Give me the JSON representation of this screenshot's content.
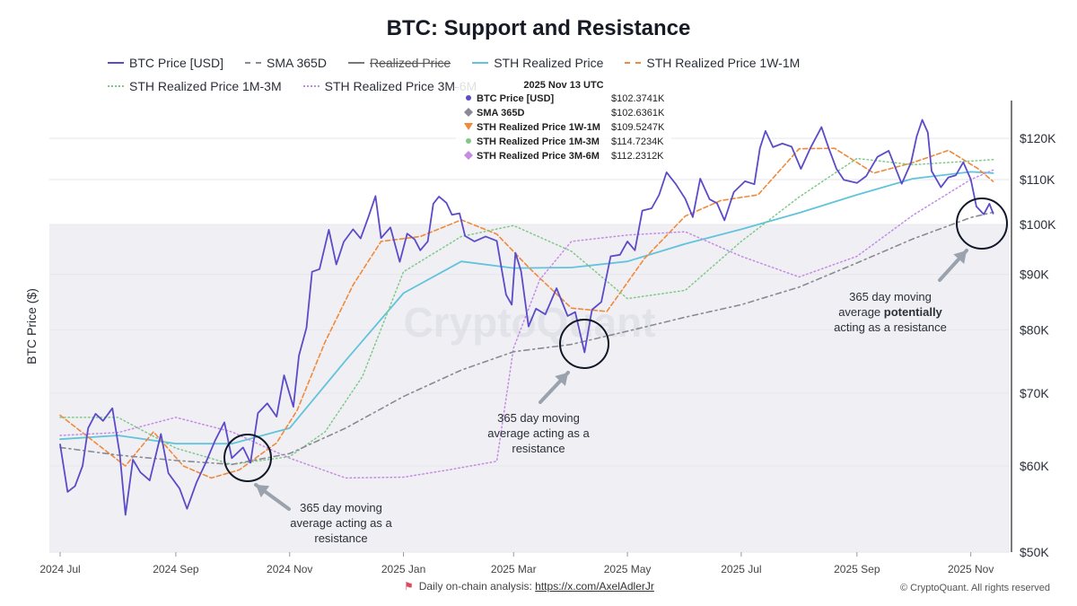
{
  "page": {
    "title": "BTC: Support and Resistance"
  },
  "legend": [
    {
      "label": "BTC Price [USD]",
      "color": "#5b4bc8",
      "dash": "solid"
    },
    {
      "label": "SMA 365D",
      "color": "#8a8a96",
      "dash": "dash"
    },
    {
      "label": "Realized Price",
      "color": "#777",
      "dash": "solid",
      "strike": true
    },
    {
      "label": "STH Realized Price",
      "color": "#62c3dc",
      "dash": "solid"
    },
    {
      "label": "STH Realized Price 1W-1M",
      "color": "#ef8a3c",
      "dash": "dash"
    },
    {
      "label": "STH Realized Price 1M-3M",
      "color": "#7ec98a",
      "dash": "dot"
    },
    {
      "label": "STH Realized Price 3M-6M",
      "color": "#c48ae6",
      "dash": "dot"
    }
  ],
  "tooltip": {
    "date": "2025 Nov 13 UTC",
    "rows": [
      {
        "marker": "circle",
        "color": "#5b4bc8",
        "label": "BTC Price [USD]",
        "value": "$102.3741K"
      },
      {
        "marker": "diamond",
        "color": "#8a8a96",
        "label": "SMA 365D",
        "value": "$102.6361K"
      },
      {
        "marker": "triangle",
        "color": "#ef8a3c",
        "label": "STH Realized Price 1W-1M",
        "value": "$109.5247K"
      },
      {
        "marker": "circle",
        "color": "#7ec98a",
        "label": "STH Realized Price 1M-3M",
        "value": "$114.7234K"
      },
      {
        "marker": "diamond",
        "color": "#c48ae6",
        "label": "STH Realized Price 3M-6M",
        "value": "$112.2312K"
      }
    ]
  },
  "annotations": [
    {
      "lines": [
        "365 day moving",
        "average acting as a",
        "resistance"
      ]
    },
    {
      "lines": [
        "365 day moving",
        "average acting as a",
        "resistance"
      ]
    },
    {
      "lines": [
        "365 day moving",
        "average potentially",
        "acting as a resistance"
      ],
      "bold_word": "potentially"
    }
  ],
  "watermark": "CryptoQuant",
  "footer": {
    "prefix": "Daily on-chain analysis: ",
    "link": "https://x.com/AxelAdlerJr",
    "copyright": "© CryptoQuant. All rights reserved"
  },
  "chart_data": {
    "type": "line",
    "title": "BTC: Support and Resistance",
    "ylabel": "BTC Price ($)",
    "y_scale": "log",
    "ylim": [
      50000,
      130000
    ],
    "y_ticks": [
      {
        "value": 120000,
        "label": "$120K"
      },
      {
        "value": 110000,
        "label": "$110K"
      },
      {
        "value": 100000,
        "label": "$100K"
      },
      {
        "value": 90000,
        "label": "$90K"
      },
      {
        "value": 80000,
        "label": "$80K"
      },
      {
        "value": 70000,
        "label": "$70K"
      },
      {
        "value": 60000,
        "label": "$60K"
      },
      {
        "value": 50000,
        "label": "$50K"
      }
    ],
    "x_ticks": [
      {
        "date": "2024-07-01",
        "label": "2024 Jul"
      },
      {
        "date": "2024-09-01",
        "label": "2024 Sep"
      },
      {
        "date": "2024-11-01",
        "label": "2024 Nov"
      },
      {
        "date": "2025-01-01",
        "label": "2025 Jan"
      },
      {
        "date": "2025-03-01",
        "label": "2025 Mar"
      },
      {
        "date": "2025-05-01",
        "label": "2025 May"
      },
      {
        "date": "2025-07-01",
        "label": "2025 Jul"
      },
      {
        "date": "2025-09-01",
        "label": "2025 Sep"
      },
      {
        "date": "2025-11-01",
        "label": "2025 Nov"
      }
    ],
    "xlim": [
      "2024-07-01",
      "2025-11-18"
    ],
    "shaded_band_below": 100000,
    "series": [
      {
        "name": "BTC Price [USD]",
        "color": "#5b4bc8",
        "width": 1.8,
        "dash": "",
        "points": [
          [
            "2024-07-01",
            62800
          ],
          [
            "2024-07-05",
            56800
          ],
          [
            "2024-07-09",
            57500
          ],
          [
            "2024-07-13",
            60000
          ],
          [
            "2024-07-16",
            65000
          ],
          [
            "2024-07-20",
            67000
          ],
          [
            "2024-07-24",
            66000
          ],
          [
            "2024-07-29",
            67800
          ],
          [
            "2024-08-02",
            61500
          ],
          [
            "2024-08-05",
            54100
          ],
          [
            "2024-08-09",
            60800
          ],
          [
            "2024-08-13",
            59200
          ],
          [
            "2024-08-18",
            58200
          ],
          [
            "2024-08-24",
            64200
          ],
          [
            "2024-08-28",
            59100
          ],
          [
            "2024-09-03",
            57200
          ],
          [
            "2024-09-07",
            54800
          ],
          [
            "2024-09-12",
            57900
          ],
          [
            "2024-09-17",
            60400
          ],
          [
            "2024-09-22",
            63300
          ],
          [
            "2024-09-27",
            65800
          ],
          [
            "2024-10-01",
            61000
          ],
          [
            "2024-10-07",
            62400
          ],
          [
            "2024-10-11",
            60400
          ],
          [
            "2024-10-15",
            67100
          ],
          [
            "2024-10-20",
            68500
          ],
          [
            "2024-10-25",
            66600
          ],
          [
            "2024-10-29",
            72700
          ],
          [
            "2024-11-03",
            68000
          ],
          [
            "2024-11-06",
            75800
          ],
          [
            "2024-11-10",
            80400
          ],
          [
            "2024-11-13",
            90500
          ],
          [
            "2024-11-17",
            91000
          ],
          [
            "2024-11-22",
            98900
          ],
          [
            "2024-11-26",
            91900
          ],
          [
            "2024-11-30",
            96400
          ],
          [
            "2024-12-05",
            99000
          ],
          [
            "2024-12-09",
            97100
          ],
          [
            "2024-12-13",
            101400
          ],
          [
            "2024-12-17",
            106200
          ],
          [
            "2024-12-20",
            97200
          ],
          [
            "2024-12-25",
            99400
          ],
          [
            "2024-12-30",
            92400
          ],
          [
            "2025-01-03",
            98100
          ],
          [
            "2025-01-07",
            96900
          ],
          [
            "2025-01-10",
            94700
          ],
          [
            "2025-01-14",
            96500
          ],
          [
            "2025-01-17",
            104500
          ],
          [
            "2025-01-20",
            106100
          ],
          [
            "2025-01-24",
            104700
          ],
          [
            "2025-01-27",
            102100
          ],
          [
            "2025-01-31",
            102400
          ],
          [
            "2025-02-03",
            97600
          ],
          [
            "2025-02-08",
            96500
          ],
          [
            "2025-02-14",
            97500
          ],
          [
            "2025-02-20",
            96600
          ],
          [
            "2025-02-25",
            86200
          ],
          [
            "2025-02-28",
            84400
          ],
          [
            "2025-03-02",
            94200
          ],
          [
            "2025-03-05",
            90600
          ],
          [
            "2025-03-09",
            80600
          ],
          [
            "2025-03-13",
            83700
          ],
          [
            "2025-03-18",
            82700
          ],
          [
            "2025-03-24",
            87400
          ],
          [
            "2025-03-30",
            82400
          ],
          [
            "2025-04-03",
            83100
          ],
          [
            "2025-04-08",
            76300
          ],
          [
            "2025-04-12",
            83500
          ],
          [
            "2025-04-17",
            84900
          ],
          [
            "2025-04-22",
            93500
          ],
          [
            "2025-04-27",
            93800
          ],
          [
            "2025-05-01",
            96500
          ],
          [
            "2025-05-05",
            94700
          ],
          [
            "2025-05-09",
            103000
          ],
          [
            "2025-05-14",
            103500
          ],
          [
            "2025-05-18",
            106500
          ],
          [
            "2025-05-22",
            111700
          ],
          [
            "2025-05-27",
            108900
          ],
          [
            "2025-06-01",
            105600
          ],
          [
            "2025-06-05",
            101600
          ],
          [
            "2025-06-09",
            110200
          ],
          [
            "2025-06-14",
            105500
          ],
          [
            "2025-06-18",
            104600
          ],
          [
            "2025-06-22",
            100900
          ],
          [
            "2025-06-27",
            107100
          ],
          [
            "2025-07-03",
            109600
          ],
          [
            "2025-07-08",
            108900
          ],
          [
            "2025-07-11",
            117500
          ],
          [
            "2025-07-14",
            121900
          ],
          [
            "2025-07-18",
            117800
          ],
          [
            "2025-07-23",
            118700
          ],
          [
            "2025-07-28",
            117900
          ],
          [
            "2025-08-02",
            112500
          ],
          [
            "2025-08-07",
            117500
          ],
          [
            "2025-08-13",
            122900
          ],
          [
            "2025-08-17",
            117400
          ],
          [
            "2025-08-21",
            112500
          ],
          [
            "2025-08-25",
            109900
          ],
          [
            "2025-09-01",
            109200
          ],
          [
            "2025-09-06",
            110800
          ],
          [
            "2025-09-12",
            115400
          ],
          [
            "2025-09-18",
            116900
          ],
          [
            "2025-09-25",
            109000
          ],
          [
            "2025-09-30",
            114000
          ],
          [
            "2025-10-03",
            120500
          ],
          [
            "2025-10-06",
            124800
          ],
          [
            "2025-10-09",
            121500
          ],
          [
            "2025-10-11",
            112000
          ],
          [
            "2025-10-16",
            108200
          ],
          [
            "2025-10-20",
            110500
          ],
          [
            "2025-10-24",
            111000
          ],
          [
            "2025-10-28",
            114100
          ],
          [
            "2025-11-01",
            110000
          ],
          [
            "2025-11-04",
            103900
          ],
          [
            "2025-11-08",
            102200
          ],
          [
            "2025-11-11",
            104500
          ],
          [
            "2025-11-13",
            102374
          ]
        ]
      },
      {
        "name": "SMA 365D",
        "color": "#8a8a96",
        "width": 1.6,
        "dash": "6 4 2 4",
        "points": [
          [
            "2024-07-01",
            62400
          ],
          [
            "2024-08-01",
            61400
          ],
          [
            "2024-09-01",
            60700
          ],
          [
            "2024-10-01",
            60200
          ],
          [
            "2024-11-01",
            61600
          ],
          [
            "2024-12-01",
            65000
          ],
          [
            "2025-01-01",
            69500
          ],
          [
            "2025-02-01",
            73500
          ],
          [
            "2025-03-01",
            76400
          ],
          [
            "2025-04-01",
            77600
          ],
          [
            "2025-05-01",
            79800
          ],
          [
            "2025-06-01",
            82200
          ],
          [
            "2025-07-01",
            84400
          ],
          [
            "2025-08-01",
            87600
          ],
          [
            "2025-09-01",
            92200
          ],
          [
            "2025-10-01",
            97000
          ],
          [
            "2025-11-01",
            101500
          ],
          [
            "2025-11-13",
            102636
          ]
        ]
      },
      {
        "name": "STH Realized Price",
        "color": "#62c3dc",
        "width": 1.8,
        "dash": "",
        "points": [
          [
            "2024-07-01",
            63500
          ],
          [
            "2024-08-01",
            64000
          ],
          [
            "2024-09-01",
            62900
          ],
          [
            "2024-10-01",
            62900
          ],
          [
            "2024-11-01",
            65000
          ],
          [
            "2024-12-01",
            75000
          ],
          [
            "2025-01-01",
            86500
          ],
          [
            "2025-02-01",
            92500
          ],
          [
            "2025-03-01",
            91200
          ],
          [
            "2025-04-01",
            91300
          ],
          [
            "2025-05-01",
            92500
          ],
          [
            "2025-06-01",
            96000
          ],
          [
            "2025-07-01",
            99000
          ],
          [
            "2025-08-01",
            102500
          ],
          [
            "2025-09-01",
            106500
          ],
          [
            "2025-10-01",
            110200
          ],
          [
            "2025-11-01",
            111800
          ],
          [
            "2025-11-13",
            111500
          ]
        ]
      },
      {
        "name": "STH Realized Price 1W-1M",
        "color": "#ef8a3c",
        "width": 1.6,
        "dash": "5 3",
        "points": [
          [
            "2024-07-01",
            66800
          ],
          [
            "2024-07-20",
            63000
          ],
          [
            "2024-08-05",
            60000
          ],
          [
            "2024-08-20",
            64500
          ],
          [
            "2024-09-05",
            60000
          ],
          [
            "2024-09-20",
            58500
          ],
          [
            "2024-10-05",
            59500
          ],
          [
            "2024-10-25",
            63000
          ],
          [
            "2024-11-05",
            67500
          ],
          [
            "2024-11-20",
            78000
          ],
          [
            "2024-12-05",
            88000
          ],
          [
            "2024-12-20",
            96500
          ],
          [
            "2025-01-10",
            97500
          ],
          [
            "2025-02-01",
            101000
          ],
          [
            "2025-02-20",
            98000
          ],
          [
            "2025-03-10",
            91000
          ],
          [
            "2025-04-01",
            83800
          ],
          [
            "2025-04-20",
            83200
          ],
          [
            "2025-05-10",
            93000
          ],
          [
            "2025-06-01",
            101800
          ],
          [
            "2025-06-20",
            105200
          ],
          [
            "2025-07-10",
            106500
          ],
          [
            "2025-08-01",
            117400
          ],
          [
            "2025-08-20",
            117500
          ],
          [
            "2025-09-10",
            111500
          ],
          [
            "2025-10-01",
            114000
          ],
          [
            "2025-10-20",
            117000
          ],
          [
            "2025-11-05",
            112500
          ],
          [
            "2025-11-13",
            109525
          ]
        ]
      },
      {
        "name": "STH Realized Price 1M-3M",
        "color": "#7ec98a",
        "width": 1.5,
        "dash": "1.5 3",
        "points": [
          [
            "2024-07-01",
            66500
          ],
          [
            "2024-08-01",
            66500
          ],
          [
            "2024-09-01",
            62300
          ],
          [
            "2024-10-01",
            60200
          ],
          [
            "2024-11-01",
            61200
          ],
          [
            "2024-11-20",
            64500
          ],
          [
            "2024-12-10",
            72500
          ],
          [
            "2025-01-01",
            90500
          ],
          [
            "2025-02-01",
            97500
          ],
          [
            "2025-03-01",
            99800
          ],
          [
            "2025-04-01",
            94500
          ],
          [
            "2025-05-01",
            85500
          ],
          [
            "2025-06-01",
            87000
          ],
          [
            "2025-07-01",
            96500
          ],
          [
            "2025-08-01",
            106000
          ],
          [
            "2025-09-01",
            115000
          ],
          [
            "2025-10-01",
            113500
          ],
          [
            "2025-11-13",
            114723
          ]
        ]
      },
      {
        "name": "STH Realized Price 3M-6M",
        "color": "#c48ae6",
        "width": 1.5,
        "dash": "1.5 3",
        "points": [
          [
            "2024-07-01",
            64000
          ],
          [
            "2024-08-01",
            64400
          ],
          [
            "2024-09-01",
            66500
          ],
          [
            "2024-10-01",
            64500
          ],
          [
            "2024-11-01",
            61000
          ],
          [
            "2024-12-01",
            58500
          ],
          [
            "2025-01-01",
            58600
          ],
          [
            "2025-01-25",
            59500
          ],
          [
            "2025-02-20",
            60600
          ],
          [
            "2025-03-01",
            77000
          ],
          [
            "2025-03-15",
            89000
          ],
          [
            "2025-04-01",
            96500
          ],
          [
            "2025-05-01",
            97800
          ],
          [
            "2025-06-01",
            98500
          ],
          [
            "2025-07-01",
            93500
          ],
          [
            "2025-08-01",
            89500
          ],
          [
            "2025-09-01",
            93500
          ],
          [
            "2025-10-01",
            102000
          ],
          [
            "2025-11-01",
            110000
          ],
          [
            "2025-11-13",
            112231
          ]
        ]
      }
    ]
  }
}
